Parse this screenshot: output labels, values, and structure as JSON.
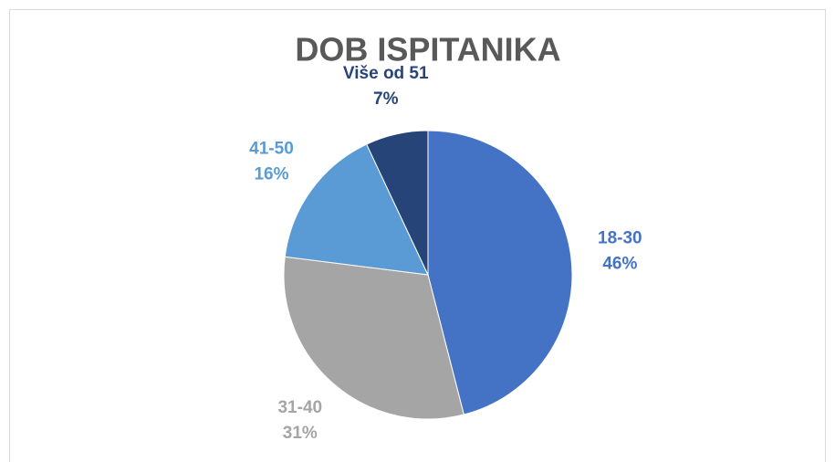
{
  "chart_data": {
    "type": "pie",
    "title": "DOB ISPITANIKA",
    "categories": [
      "18-30",
      "31-40",
      "41-50",
      "Više od 51"
    ],
    "values": [
      46,
      31,
      16,
      7
    ],
    "value_labels": [
      "46%",
      "31%",
      "16%",
      "7%"
    ],
    "colors": [
      "#4472c4",
      "#a5a5a5",
      "#5b9bd5",
      "#264478"
    ]
  }
}
